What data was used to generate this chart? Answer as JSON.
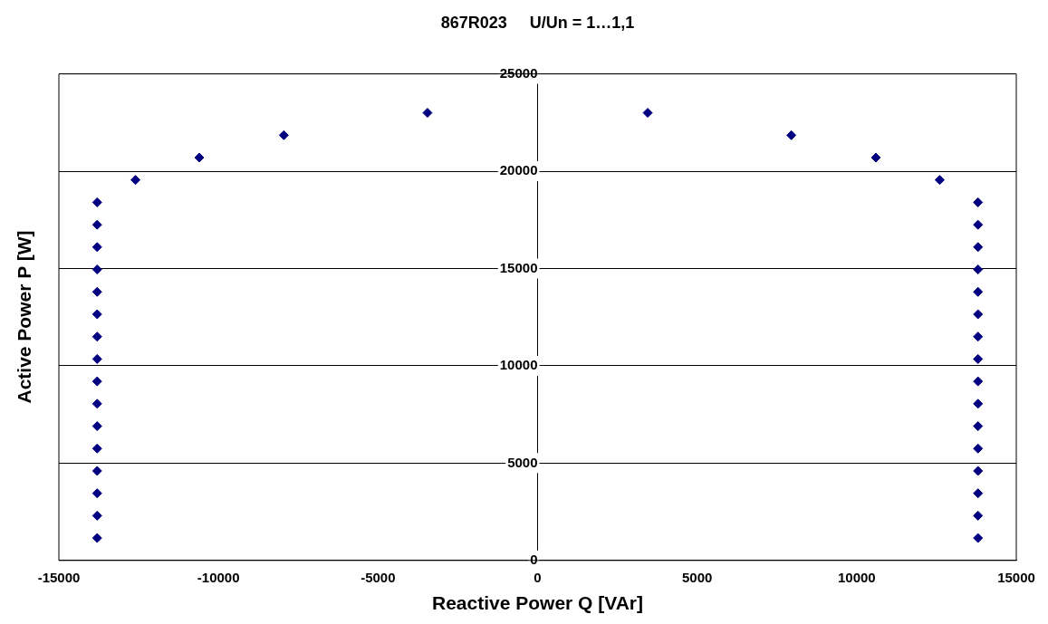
{
  "chart_data": {
    "type": "scatter",
    "title": "867R023     U/Un = 1…1,1",
    "xlabel": "Reactive Power Q [VAr]",
    "ylabel": "Active Power P [W]",
    "series": [
      {
        "color": "#000080",
        "x": [
          -13800,
          -13800,
          -13800,
          -13800,
          -13800,
          -13800,
          -13800,
          -13800,
          -13800,
          -13800,
          -13800,
          -13800,
          -13800,
          -13800,
          -13800,
          -13800,
          -12600,
          -10600,
          -7950,
          -3450,
          3450,
          7950,
          10600,
          12600,
          13800,
          13800,
          13800,
          13800,
          13800,
          13800,
          13800,
          13800,
          13800,
          13800,
          13800,
          13800,
          13800,
          13800,
          13800,
          13800
        ],
        "values": [
          1150,
          2300,
          3450,
          4600,
          5750,
          6900,
          8050,
          9200,
          10350,
          11500,
          12650,
          13800,
          14950,
          16100,
          17250,
          18400,
          19550,
          20700,
          21850,
          23000,
          23000,
          21850,
          20700,
          19550,
          18400,
          17250,
          16100,
          14950,
          13800,
          12650,
          11500,
          10350,
          9200,
          8050,
          6900,
          5750,
          4600,
          3450,
          2300,
          1150
        ]
      }
    ],
    "xlim": [
      -15000,
      15000
    ],
    "xticks": [
      -15000,
      -10000,
      -5000,
      0,
      5000,
      10000,
      15000
    ],
    "ylim": [
      0,
      25000
    ],
    "yticks": [
      0,
      5000,
      10000,
      15000,
      20000,
      25000
    ],
    "grid": "y",
    "marker": "diamond",
    "legend": false
  }
}
